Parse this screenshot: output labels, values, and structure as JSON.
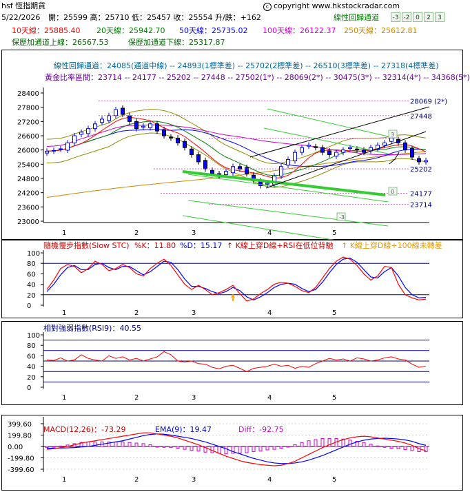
{
  "header": {
    "symbol": "hsf 恆指期貨",
    "copyright": "copyright www.hkstockradar.com",
    "channel_label": "線性回歸通道",
    "channel_buttons": [
      "-3",
      "-2",
      "0",
      "2",
      "3"
    ],
    "date": "5/22/2026",
    "ohlc_text": "開：25599 高：25710 低：25457 收：25554 升/跌：+162",
    "ma10": "10天線：25885.40",
    "ma20": "20天線：25942.70",
    "ma50": "50天線：25735.02",
    "ma100": "100天線：26122.37",
    "ma250": "250天線：25612.81",
    "upper_band": "保歷加通道上線：26567.53",
    "lower_band": "保歷加通道下線：25317.87"
  },
  "colors": {
    "ma10": "#ff0000",
    "ma20": "#008000",
    "ma50": "#0000ff",
    "ma100": "#cc00cc",
    "ma250": "#cc8800",
    "bollinger": "#8c8c00",
    "green": "#33cc33"
  },
  "chart_data": [
    {
      "type": "candlestick",
      "info_line1": "線性回歸通道：24085(通道中線) -- 24893(1標準差) -- 25702(2標準差) -- 26510(3標準差) -- 27318(4標準差)",
      "info_line2": "黃金比率區間：23714 -- 24177 -- 25202 -- 27448 -- 27502(1*) -- 28069(2*) -- 30475(3*) -- 32314(4*) -- 34368(5*)",
      "x_tick_labels": [
        "1",
        "2",
        "3",
        "4",
        "5"
      ],
      "y_ticks": [
        28400,
        27800,
        27200,
        26600,
        26000,
        25400,
        24800,
        24200,
        23600,
        23000
      ],
      "ylim": [
        23000,
        28600
      ],
      "level_labels": [
        {
          "text": "28069 (2*)",
          "value": 28069
        },
        {
          "text": "27448",
          "value": 27448
        },
        {
          "text": "25202",
          "value": 25202
        },
        {
          "text": "24177",
          "value": 24177
        },
        {
          "text": "23714",
          "value": 23714
        }
      ],
      "channel_tags": [
        "3",
        "0",
        "-3"
      ],
      "grid": false
    },
    {
      "type": "line",
      "title": "隨機慢步指數(Slow STC) %K：11.80",
      "k_label": "%K：11.80",
      "d_label": "%D：15.17",
      "note1": "K線上穿D線+RSI在低位背馳",
      "note2": "K線上穿D線+100線未轉差",
      "x_tick_labels": [
        "1",
        "2",
        "3",
        "4",
        "5"
      ],
      "y_ticks": [
        100,
        80,
        60,
        40,
        20,
        0
      ],
      "ylim": [
        0,
        100
      ],
      "ref_lines": [
        80,
        20
      ],
      "k": [
        30,
        48,
        70,
        78,
        74,
        62,
        70,
        84,
        78,
        66,
        70,
        78,
        72,
        60,
        56,
        70,
        80,
        88,
        76,
        58,
        40,
        30,
        38,
        30,
        20,
        24,
        30,
        38,
        22,
        8,
        12,
        22,
        30,
        40,
        44,
        42,
        36,
        28,
        24,
        34,
        52,
        70,
        84,
        92,
        88,
        76,
        60,
        48,
        56,
        74,
        72,
        40,
        20,
        14,
        10,
        11.8
      ],
      "d": [
        26,
        40,
        58,
        72,
        76,
        68,
        68,
        78,
        80,
        72,
        68,
        74,
        74,
        66,
        58,
        64,
        74,
        84,
        82,
        68,
        50,
        36,
        36,
        32,
        26,
        22,
        26,
        34,
        28,
        16,
        10,
        16,
        24,
        34,
        40,
        42,
        40,
        32,
        26,
        30,
        44,
        62,
        78,
        88,
        90,
        82,
        68,
        54,
        52,
        64,
        72,
        56,
        34,
        20,
        14,
        15.17
      ]
    },
    {
      "type": "line",
      "title": "相對強弱指數(RSI9)：40.55",
      "x_tick_labels": [
        "1",
        "2",
        "3",
        "4",
        "5"
      ],
      "y_ticks": [
        100,
        80,
        60,
        40,
        20,
        0
      ],
      "ylim": [
        0,
        100
      ],
      "ref_lines": [
        90,
        70,
        50,
        30,
        10
      ],
      "values": [
        52,
        51,
        56,
        50,
        52,
        62,
        55,
        52,
        50,
        60,
        55,
        58,
        52,
        55,
        50,
        54,
        58,
        68,
        62,
        50,
        48,
        50,
        45,
        44,
        38,
        35,
        40,
        42,
        36,
        30,
        36,
        38,
        40,
        44,
        40,
        42,
        36,
        40,
        38,
        45,
        50,
        55,
        52,
        54,
        50,
        56,
        54,
        50,
        52,
        56,
        58,
        54,
        52,
        44,
        38,
        40.55
      ]
    },
    {
      "type": "bar",
      "title": "MACD(12,26)：-73.29",
      "macd_label": "MACD(12,26)：-73.29",
      "ema_label": "EMA(9)：19.47",
      "diff_label": "Diff：-92.75",
      "x_tick_labels": [
        "1",
        "2",
        "3",
        "4",
        "5"
      ],
      "y_ticks": [
        399.6,
        199.8,
        0.0,
        -199.8,
        -399.6
      ],
      "ylim": [
        -450,
        450
      ],
      "macd": [
        -50,
        -40,
        -20,
        0,
        30,
        60,
        80,
        100,
        120,
        140,
        160,
        180,
        200,
        220,
        240,
        240,
        220,
        200,
        180,
        150,
        110,
        70,
        30,
        -20,
        -70,
        -120,
        -170,
        -210,
        -250,
        -280,
        -300,
        -320,
        -330,
        -340,
        -330,
        -300,
        -260,
        -200,
        -140,
        -80,
        -20,
        30,
        80,
        120,
        150,
        170,
        180,
        170,
        150,
        130,
        110,
        90,
        60,
        20,
        -40,
        -73.29
      ],
      "ema": [
        -30,
        -30,
        -28,
        -25,
        -20,
        -10,
        0,
        20,
        40,
        60,
        80,
        100,
        130,
        160,
        190,
        210,
        220,
        215,
        200,
        180,
        160,
        140,
        110,
        80,
        40,
        0,
        -40,
        -90,
        -130,
        -170,
        -210,
        -240,
        -270,
        -290,
        -300,
        -300,
        -290,
        -270,
        -240,
        -200,
        -160,
        -110,
        -60,
        -10,
        40,
        80,
        110,
        130,
        140,
        145,
        140,
        130,
        115,
        90,
        50,
        19.47
      ],
      "diff": [
        -20,
        -10,
        8,
        25,
        50,
        70,
        80,
        80,
        80,
        80,
        80,
        80,
        70,
        60,
        50,
        30,
        0,
        -15,
        -20,
        -30,
        -50,
        -70,
        -80,
        -100,
        -110,
        -120,
        -130,
        -120,
        -120,
        -110,
        -90,
        -80,
        -60,
        -50,
        -30,
        0,
        30,
        70,
        100,
        120,
        140,
        140,
        140,
        130,
        110,
        90,
        70,
        40,
        10,
        -15,
        -30,
        -40,
        -55,
        -70,
        -90,
        -92.75
      ]
    }
  ]
}
